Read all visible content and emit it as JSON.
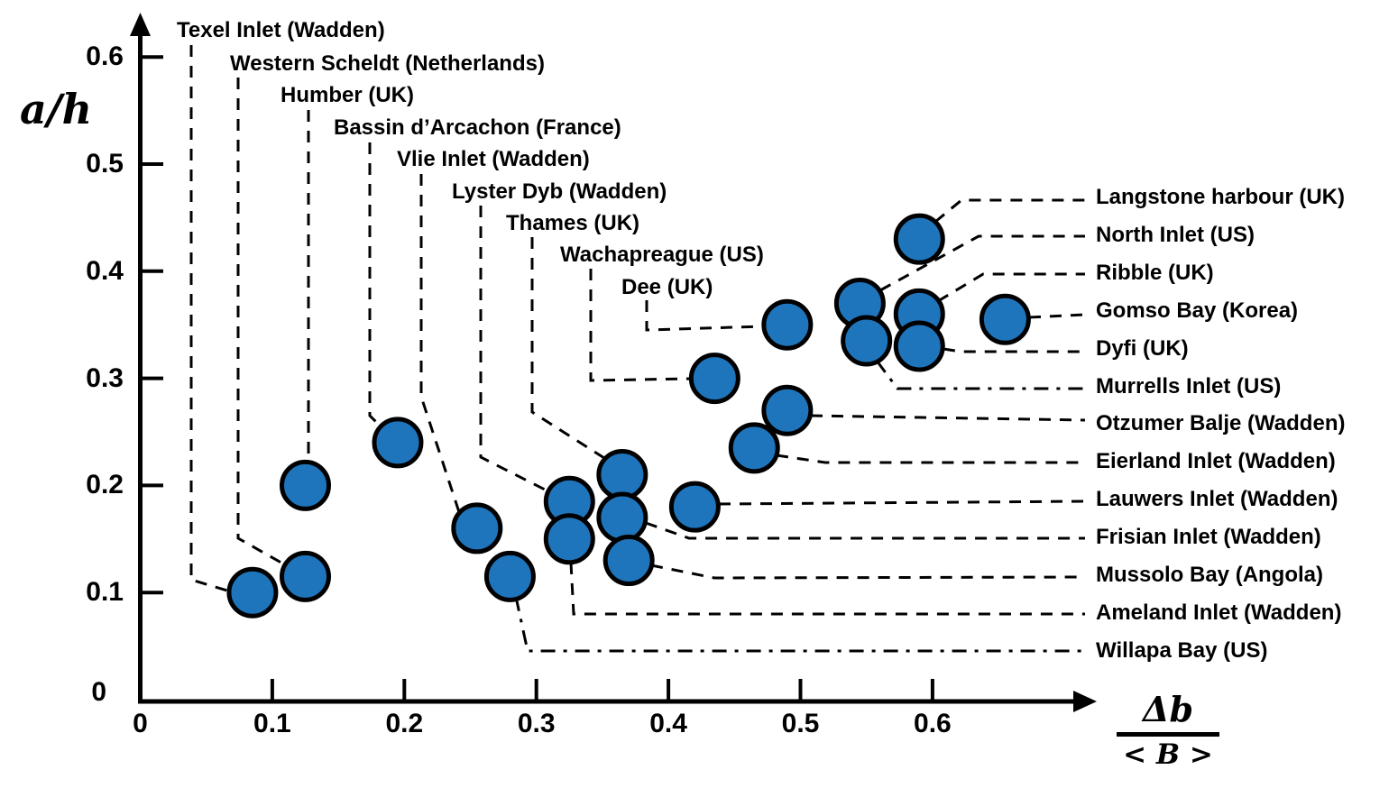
{
  "figure": {
    "y_axis_title": "a/h",
    "x_axis_title_numerator": "Δb",
    "x_axis_title_denominator": "< B >",
    "x_tick_labels": [
      "0",
      "0.1",
      "0.2",
      "0.3",
      "0.4",
      "0.5",
      "0.6"
    ],
    "y_tick_labels": [
      "0",
      "0.1",
      "0.2",
      "0.3",
      "0.4",
      "0.5",
      "0.6"
    ],
    "colors": {
      "marker_fill": "#1E75BC",
      "marker_stroke": "#000000",
      "axis": "#000000",
      "leader_line": "#000000",
      "background": "#ffffff"
    }
  },
  "chart_data": {
    "type": "scatter",
    "title": "",
    "xlabel": "Δb/<B>",
    "ylabel": "a/h",
    "xlim": [
      0,
      0.72
    ],
    "ylim": [
      0,
      0.65
    ],
    "x_ticks": [
      0,
      0.1,
      0.2,
      0.3,
      0.4,
      0.5,
      0.6
    ],
    "y_ticks": [
      0,
      0.1,
      0.2,
      0.3,
      0.4,
      0.5,
      0.6
    ],
    "grid": false,
    "legend": "none",
    "points": [
      {
        "id": "texel",
        "label": "Texel Inlet (Wadden)",
        "x": 0.085,
        "y": 0.1,
        "label_side": "top"
      },
      {
        "id": "western-scheldt",
        "label": "Western Scheldt (Netherlands)",
        "x": 0.125,
        "y": 0.115,
        "label_side": "top"
      },
      {
        "id": "humber",
        "label": "Humber (UK)",
        "x": 0.125,
        "y": 0.2,
        "label_side": "top"
      },
      {
        "id": "bassin-arcachon",
        "label": "Bassin d’Arcachon (France)",
        "x": 0.195,
        "y": 0.24,
        "label_side": "top"
      },
      {
        "id": "vlie",
        "label": "Vlie Inlet (Wadden)",
        "x": 0.255,
        "y": 0.16,
        "label_side": "top"
      },
      {
        "id": "lyster-dyb",
        "label": "Lyster Dyb (Wadden)",
        "x": 0.325,
        "y": 0.185,
        "label_side": "top"
      },
      {
        "id": "thames",
        "label": "Thames (UK)",
        "x": 0.365,
        "y": 0.21,
        "label_side": "top"
      },
      {
        "id": "wachapreague",
        "label": "Wachapreague (US)",
        "x": 0.435,
        "y": 0.3,
        "label_side": "top"
      },
      {
        "id": "dee",
        "label": "Dee (UK)",
        "x": 0.49,
        "y": 0.35,
        "label_side": "top"
      },
      {
        "id": "langstone",
        "label": "Langstone harbour (UK)",
        "x": 0.59,
        "y": 0.43,
        "label_side": "right"
      },
      {
        "id": "north-inlet",
        "label": "North Inlet (US)",
        "x": 0.545,
        "y": 0.37,
        "label_side": "right"
      },
      {
        "id": "ribble",
        "label": "Ribble (UK)",
        "x": 0.59,
        "y": 0.36,
        "label_side": "right"
      },
      {
        "id": "gomso",
        "label": "Gomso Bay (Korea)",
        "x": 0.655,
        "y": 0.355,
        "label_side": "right"
      },
      {
        "id": "dyfi",
        "label": "Dyfi (UK)",
        "x": 0.59,
        "y": 0.33,
        "label_side": "right"
      },
      {
        "id": "murrells",
        "label": "Murrells Inlet (US)",
        "x": 0.55,
        "y": 0.335,
        "label_side": "right"
      },
      {
        "id": "otzumer",
        "label": "Otzumer Balje (Wadden)",
        "x": 0.49,
        "y": 0.27,
        "label_side": "right"
      },
      {
        "id": "eierland",
        "label": "Eierland Inlet (Wadden)",
        "x": 0.465,
        "y": 0.235,
        "label_side": "right"
      },
      {
        "id": "lauwers",
        "label": "Lauwers Inlet (Wadden)",
        "x": 0.42,
        "y": 0.18,
        "label_side": "right"
      },
      {
        "id": "frisian",
        "label": "Frisian Inlet (Wadden)",
        "x": 0.365,
        "y": 0.17,
        "label_side": "right"
      },
      {
        "id": "mussolo",
        "label": "Mussolo Bay (Angola)",
        "x": 0.37,
        "y": 0.13,
        "label_side": "right"
      },
      {
        "id": "ameland",
        "label": "Ameland Inlet (Wadden)",
        "x": 0.325,
        "y": 0.15,
        "label_side": "right"
      },
      {
        "id": "willapa",
        "label": "Willapa Bay (US)",
        "x": 0.28,
        "y": 0.115,
        "label_side": "right"
      }
    ]
  }
}
